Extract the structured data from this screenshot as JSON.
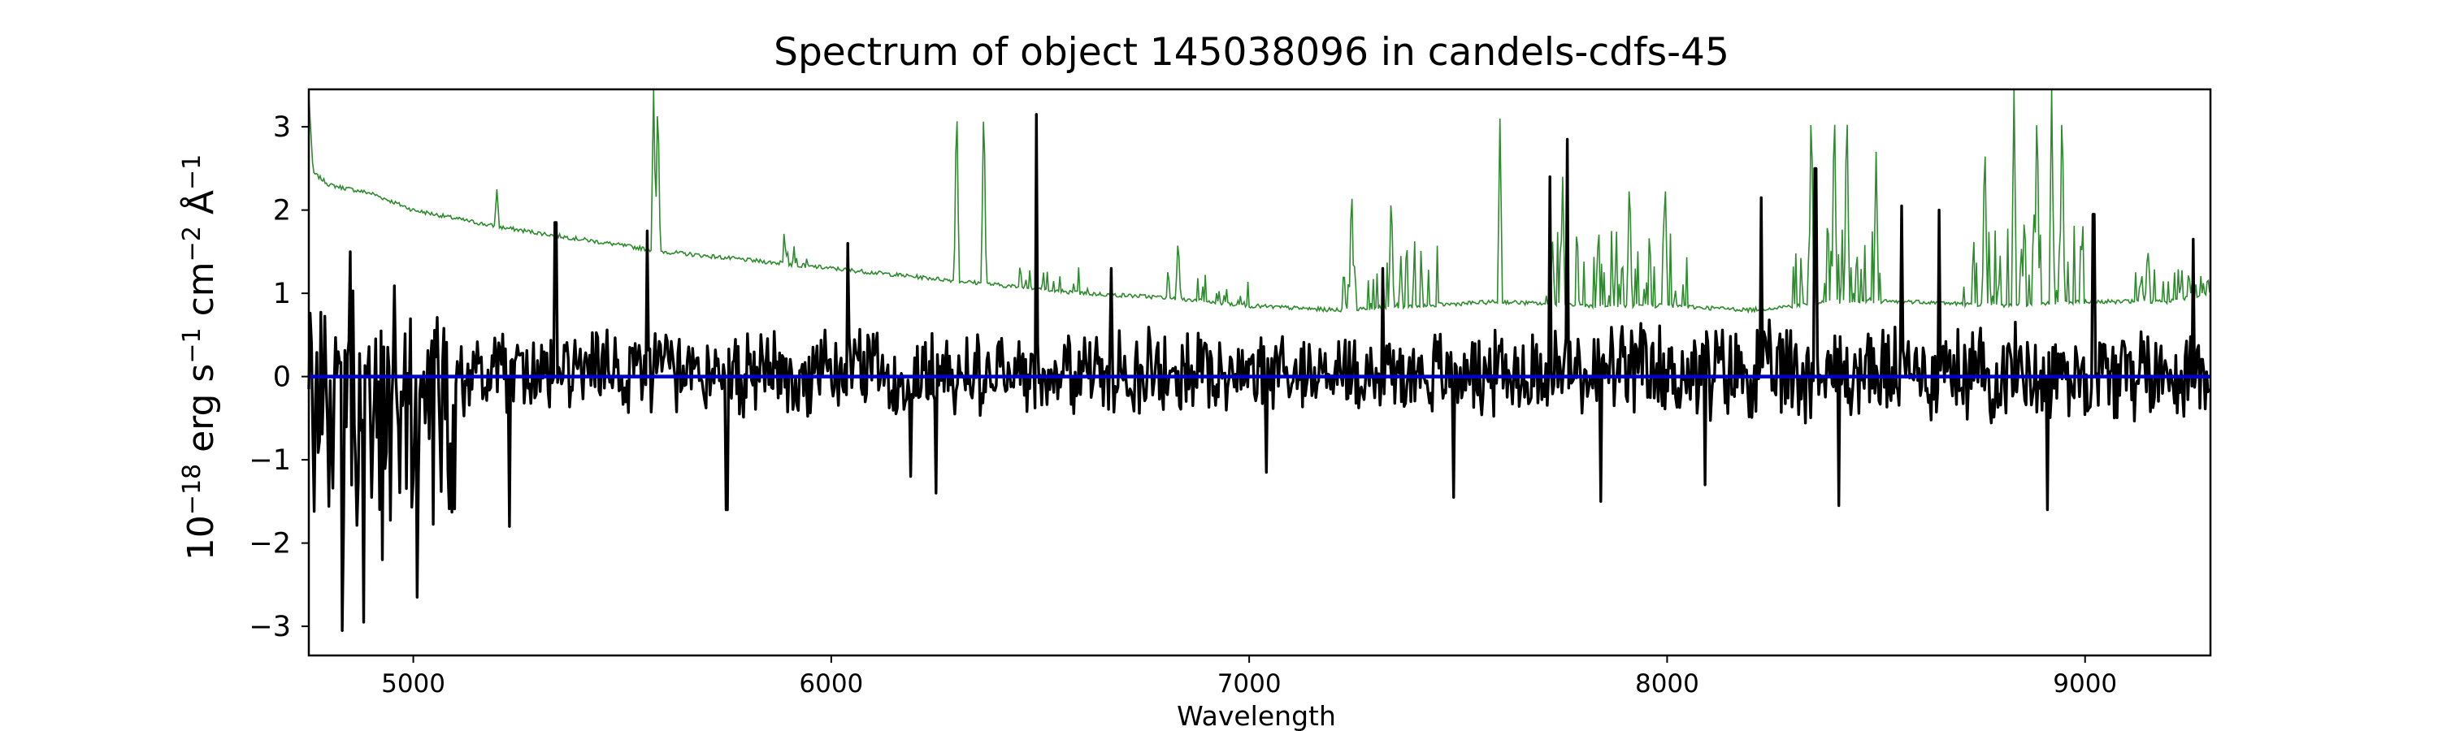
{
  "chart_data": {
    "type": "line",
    "title": "Spectrum of object 145038096 in candels-cdfs-45",
    "xlabel": "Wavelength",
    "ylabel": {
      "parts": [
        {
          "text": "10",
          "sup": false
        },
        {
          "text": "−18",
          "sup": true
        },
        {
          "text": " erg s",
          "sup": false
        },
        {
          "text": "−1",
          "sup": true
        },
        {
          "text": " cm",
          "sup": false
        },
        {
          "text": "−2",
          "sup": true
        },
        {
          "text": " Å",
          "sup": false
        },
        {
          "text": "−1",
          "sup": true
        }
      ]
    },
    "xlim": [
      4750,
      9300
    ],
    "ylim": [
      -3.35,
      3.45
    ],
    "xticks": [
      5000,
      6000,
      7000,
      8000,
      9000
    ],
    "yticks": [
      -3,
      -2,
      -1,
      0,
      1,
      2,
      3
    ],
    "ytick_labels": [
      "−3",
      "−2",
      "−1",
      "0",
      "1",
      "2",
      "3"
    ],
    "grid": false,
    "colors": {
      "flux": "#000000",
      "noise": "#2e8b2e",
      "model": "#0000cc"
    },
    "series": [
      {
        "key": "noise",
        "continuum": {
          "x": [
            4750,
            4760,
            4800,
            4900,
            5000,
            5200,
            5400,
            5600,
            5800,
            6000,
            6200,
            6400,
            6600,
            6800,
            7000,
            7200,
            7400,
            7600,
            7800,
            8000,
            8200,
            8400,
            8600,
            8800,
            9000,
            9200,
            9300
          ],
          "y": [
            3.4,
            2.45,
            2.3,
            2.2,
            2.0,
            1.8,
            1.65,
            1.5,
            1.4,
            1.3,
            1.2,
            1.1,
            1.0,
            0.95,
            0.85,
            0.8,
            0.85,
            0.9,
            0.85,
            0.85,
            0.8,
            0.9,
            0.9,
            0.85,
            0.9,
            0.9,
            1.0
          ]
        },
        "lines": [
          [
            5200,
            2.25
          ],
          [
            5575,
            3.45
          ],
          [
            5585,
            3.45
          ],
          [
            5890,
            1.55
          ],
          [
            6300,
            3.45
          ],
          [
            6365,
            3.45
          ],
          [
            6830,
            1.7
          ],
          [
            7245,
            2.4
          ],
          [
            7340,
            2.3
          ],
          [
            7600,
            3.1
          ],
          [
            7750,
            2.4
          ],
          [
            7910,
            2.5
          ],
          [
            7995,
            2.5
          ],
          [
            8345,
            3.45
          ],
          [
            8400,
            3.45
          ],
          [
            8430,
            3.45
          ],
          [
            8500,
            2.7
          ],
          [
            8760,
            3.0
          ],
          [
            8830,
            3.45
          ],
          [
            8885,
            3.45
          ],
          [
            8920,
            3.45
          ],
          [
            8945,
            3.45
          ],
          [
            9150,
            1.6
          ]
        ],
        "forest": [
          [
            5870,
            5950,
            0.35
          ],
          [
            6450,
            6620,
            0.3
          ],
          [
            6800,
            7000,
            0.35
          ],
          [
            7220,
            7450,
            0.8
          ],
          [
            7700,
            8050,
            0.9
          ],
          [
            8300,
            8550,
            1.0
          ],
          [
            8700,
            9000,
            1.1
          ],
          [
            9100,
            9300,
            0.4
          ]
        ]
      },
      {
        "key": "flux",
        "spikes": [
          [
            4830,
            -3.05
          ],
          [
            4850,
            1.5
          ],
          [
            4880,
            -2.95
          ],
          [
            4925,
            -2.2
          ],
          [
            5010,
            -2.65
          ],
          [
            5230,
            -1.8
          ],
          [
            5340,
            1.85
          ],
          [
            5560,
            1.75
          ],
          [
            5750,
            -1.6
          ],
          [
            6040,
            1.6
          ],
          [
            6190,
            -1.2
          ],
          [
            6250,
            -1.4
          ],
          [
            6490,
            3.15
          ],
          [
            6670,
            1.3
          ],
          [
            7040,
            -1.15
          ],
          [
            7320,
            1.3
          ],
          [
            7490,
            -1.45
          ],
          [
            7720,
            2.4
          ],
          [
            7760,
            2.85
          ],
          [
            7840,
            -1.5
          ],
          [
            8090,
            -1.3
          ],
          [
            8225,
            2.15
          ],
          [
            8355,
            2.5
          ],
          [
            8410,
            -1.55
          ],
          [
            8560,
            2.05
          ],
          [
            8650,
            2.0
          ],
          [
            8910,
            -1.6
          ],
          [
            9020,
            1.95
          ],
          [
            9260,
            1.65
          ]
        ]
      },
      {
        "key": "model",
        "x": [
          4750,
          9300
        ],
        "y": [
          0,
          0
        ]
      }
    ]
  }
}
